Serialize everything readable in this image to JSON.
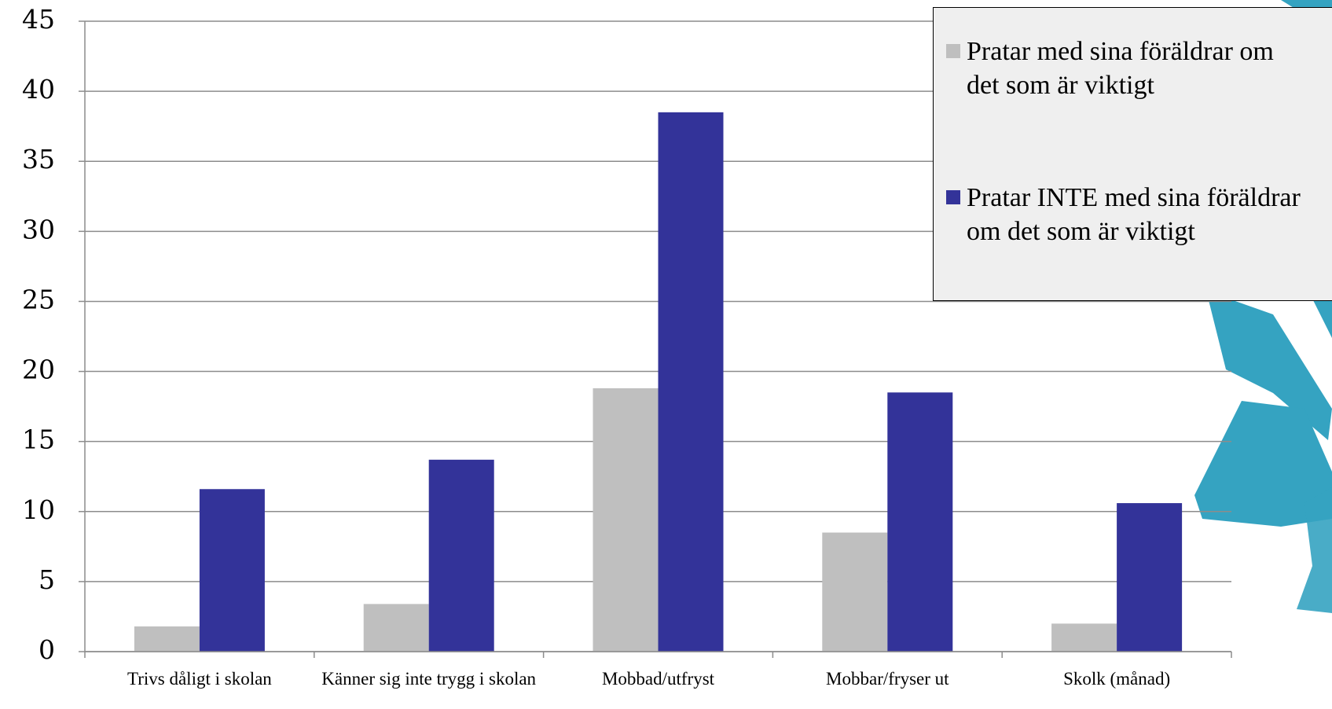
{
  "chart_data": {
    "type": "bar",
    "categories": [
      "Trivs dåligt i skolan",
      "Känner sig inte trygg i skolan",
      "Mobbad/utfryst",
      "Mobbar/fryser ut",
      "Skolk (månad)"
    ],
    "series": [
      {
        "name": "Pratar med sina föräldrar om det som är viktigt",
        "color": "#bfbfbf",
        "values": [
          1.8,
          3.4,
          18.8,
          8.5,
          2.0
        ]
      },
      {
        "name": "Pratar INTE med sina föräldrar om det som är viktigt",
        "color": "#333399",
        "values": [
          11.6,
          13.7,
          38.5,
          18.5,
          10.6
        ]
      }
    ],
    "ylim": [
      0,
      45
    ],
    "yticks": [
      0,
      5,
      10,
      15,
      20,
      25,
      30,
      35,
      40,
      45
    ],
    "grid": true,
    "legend": "top-right"
  }
}
